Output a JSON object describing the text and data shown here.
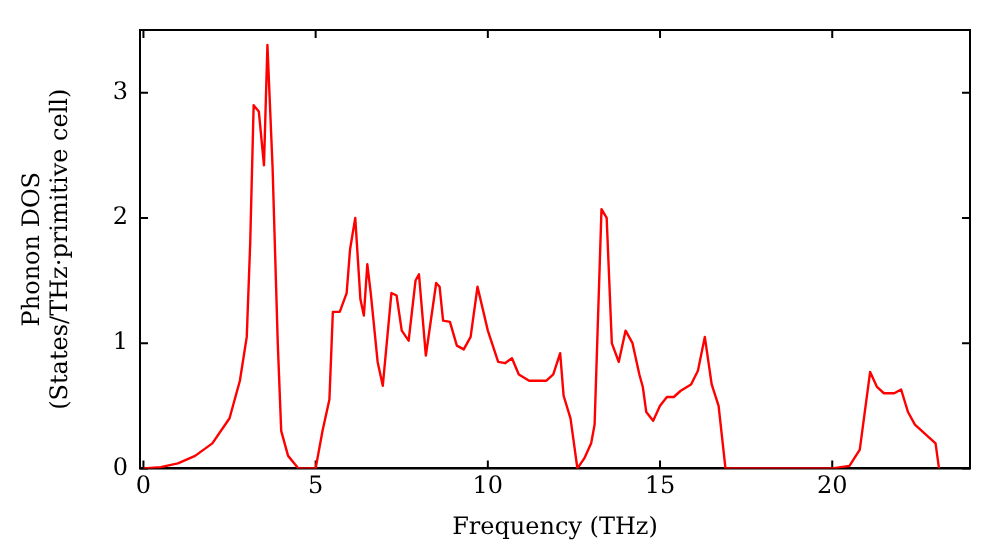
{
  "chart_data": {
    "type": "line",
    "xlabel": "Frequency (THz)",
    "ylabel": "Phonon DOS\n(States/THz·primitive cell)",
    "x": [
      0,
      0.5,
      1,
      1.5,
      2,
      2.5,
      2.8,
      3.0,
      3.1,
      3.2,
      3.35,
      3.5,
      3.6,
      3.75,
      3.9,
      4.0,
      4.2,
      4.5,
      5.0,
      5.2,
      5.4,
      5.5,
      5.7,
      5.9,
      6.0,
      6.15,
      6.3,
      6.4,
      6.5,
      6.6,
      6.8,
      6.95,
      7.2,
      7.35,
      7.5,
      7.7,
      7.9,
      8.0,
      8.2,
      8.5,
      8.6,
      8.7,
      8.9,
      9.1,
      9.3,
      9.5,
      9.7,
      10.0,
      10.3,
      10.5,
      10.7,
      10.9,
      11.2,
      11.7,
      11.9,
      12.1,
      12.2,
      12.4,
      12.6,
      12.8,
      13.0,
      13.1,
      13.3,
      13.45,
      13.6,
      13.8,
      14.0,
      14.2,
      14.4,
      14.5,
      14.6,
      14.8,
      15.0,
      15.2,
      15.4,
      15.6,
      15.9,
      16.1,
      16.3,
      16.5,
      16.7,
      16.9,
      20.0,
      20.5,
      20.8,
      21.1,
      21.3,
      21.5,
      21.8,
      22.0,
      22.2,
      22.4,
      22.8,
      23.0,
      23.1
    ],
    "series": [
      {
        "color": "#ff0000",
        "values": [
          0,
          0.01,
          0.04,
          0.1,
          0.2,
          0.4,
          0.7,
          1.05,
          1.8,
          2.9,
          2.85,
          2.42,
          3.38,
          2.4,
          1.0,
          0.3,
          0.1,
          0,
          0,
          0.3,
          0.55,
          1.25,
          1.25,
          1.4,
          1.75,
          2.0,
          1.35,
          1.22,
          1.63,
          1.4,
          0.85,
          0.66,
          1.4,
          1.38,
          1.1,
          1.02,
          1.5,
          1.55,
          0.9,
          1.48,
          1.45,
          1.18,
          1.17,
          0.98,
          0.95,
          1.05,
          1.45,
          1.1,
          0.85,
          0.84,
          0.88,
          0.75,
          0.7,
          0.7,
          0.75,
          0.92,
          0.58,
          0.4,
          0,
          0.08,
          0.2,
          0.35,
          2.07,
          2.0,
          1.0,
          0.85,
          1.1,
          1.0,
          0.75,
          0.65,
          0.45,
          0.38,
          0.5,
          0.57,
          0.57,
          0.62,
          0.67,
          0.78,
          1.05,
          0.67,
          0.5,
          0,
          0,
          0.02,
          0.15,
          0.77,
          0.65,
          0.6,
          0.6,
          0.63,
          0.45,
          0.35,
          0.25,
          0.2,
          0
        ]
      }
    ],
    "xlim": [
      -0.1,
      24
    ],
    "xticks": [
      0,
      5,
      10,
      15,
      20
    ],
    "ylim": [
      0,
      3.5
    ],
    "yticks": [
      0,
      1,
      2,
      3
    ],
    "grid": false,
    "legend": false,
    "marker": "none",
    "line_style": "solid"
  }
}
